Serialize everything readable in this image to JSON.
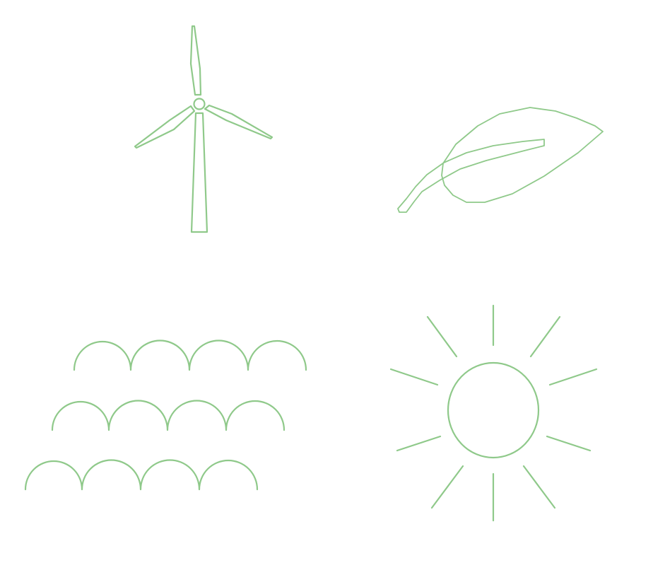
{
  "theme": {
    "stroke_color": "#8fc98a",
    "background": "#ffffff"
  },
  "icons": [
    {
      "name": "wind-turbine-icon"
    },
    {
      "name": "leaf-icon"
    },
    {
      "name": "waves-icon"
    },
    {
      "name": "sun-icon"
    }
  ]
}
